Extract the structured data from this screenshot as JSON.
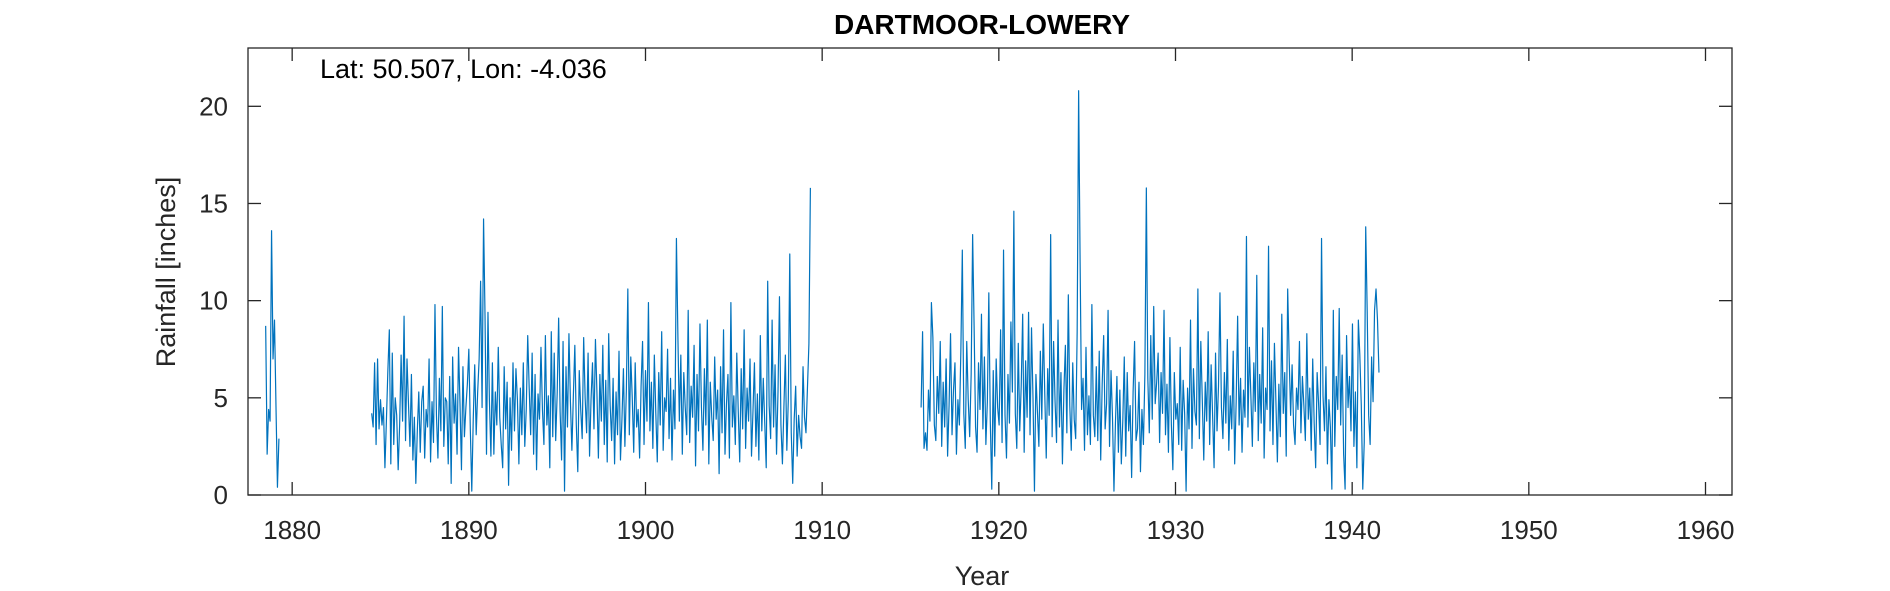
{
  "chart_data": {
    "type": "line",
    "title": "DARTMOOR-LOWERY",
    "xlabel": "Year",
    "ylabel": "Rainfall [inches]",
    "annotation": "Lat: 50.507, Lon: -4.036",
    "xlim": [
      1877.5,
      1961.5
    ],
    "ylim": [
      0,
      23
    ],
    "xticks": [
      1880,
      1890,
      1900,
      1910,
      1920,
      1930,
      1940,
      1950,
      1960
    ],
    "yticks": [
      0,
      5,
      10,
      15,
      20
    ],
    "grid": false,
    "line_color": "#0072BD",
    "series": [
      {
        "segments": [
          {
            "start": 1878.5,
            "values": [
              8.7,
              2.1,
              4.4,
              3.8,
              13.6,
              7.0,
              9.0,
              4.6,
              0.4,
              2.9
            ]
          },
          {
            "start": 1884.5,
            "values": [
              4.2,
              3.5,
              6.8,
              2.6,
              7.0,
              3.4,
              4.9,
              3.6,
              4.5,
              1.4,
              3.8,
              6.4,
              8.5,
              1.6,
              7.3,
              2.6,
              5.0,
              4.1,
              1.3,
              3.6,
              7.2,
              3.8,
              9.2,
              2.8,
              7.0,
              4.7,
              2.5,
              6.2,
              1.8,
              4.0,
              0.6,
              3.3,
              5.3,
              2.2,
              4.8,
              5.6,
              1.9,
              4.4,
              3.5,
              7.0,
              1.7,
              4.8,
              2.7,
              9.8,
              4.1,
              1.9,
              6.0,
              3.3,
              9.7,
              2.5,
              5.0,
              4.8,
              1.6,
              6.1,
              0.6,
              7.1,
              3.7,
              5.2,
              2.1,
              7.6,
              4.7,
              1.3,
              6.6,
              3.0,
              4.5,
              5.7,
              7.5,
              3.4,
              0.2,
              3.9,
              6.7,
              3.1,
              5.3,
              7.0,
              11.0,
              4.5,
              14.2,
              9.2,
              2.1,
              9.4,
              4.8,
              2.0,
              6.8,
              2.1,
              5.3,
              3.6,
              7.6,
              4.0,
              2.6,
              1.4,
              6.6,
              3.4,
              5.8,
              0.5,
              5.0,
              2.3,
              6.8,
              3.3,
              6.5,
              4.9,
              1.6,
              5.5,
              3.1,
              6.8,
              2.5,
              4.4,
              8.2,
              5.5,
              3.1,
              7.3,
              2.1,
              6.2,
              1.3,
              5.2,
              3.9,
              7.6,
              4.4,
              2.6,
              8.2,
              3.6,
              5.1,
              1.4,
              8.4,
              3.0,
              7.3,
              2.8,
              5.2,
              9.1,
              4.3,
              1.8,
              7.9,
              0.2,
              6.6,
              3.5,
              8.3,
              4.8,
              2.3,
              5.1,
              7.7,
              3.6,
              1.2,
              6.4,
              4.4,
              2.9,
              8.1,
              5.0,
              3.2,
              7.3,
              2.0,
              4.9,
              6.8,
              3.4,
              8.0,
              5.3,
              1.9,
              6.2,
              3.8,
              7.7,
              2.6,
              5.9,
              1.7,
              8.3,
              4.6,
              2.8,
              6.0,
              1.6,
              5.3,
              3.1,
              7.4,
              1.8,
              3.9,
              6.5,
              2.5,
              5.4,
              10.6,
              3.1,
              7.1,
              5.0,
              2.2,
              6.8,
              3.5,
              4.4,
              1.9,
              5.6,
              7.9,
              2.6,
              6.4,
              3.8,
              9.9,
              3.3,
              5.8,
              2.4,
              7.2,
              4.2,
              1.7,
              6.3,
              3.6,
              8.4,
              2.3,
              5.0,
              4.3,
              7.5,
              2.9,
              6.0,
              1.8,
              5.4,
              3.4,
              13.2,
              8.2,
              3.8,
              7.2,
              2.1,
              6.3,
              4.5,
              3.1,
              9.5,
              2.7,
              5.6,
              4.0,
              7.7,
              1.5,
              6.2,
              3.3,
              8.8,
              4.5,
              2.3,
              6.5,
              3.6,
              9.0,
              1.6,
              5.8,
              4.0,
              2.8,
              7.1,
              3.9,
              5.4,
              1.1,
              6.6,
              3.2,
              8.5,
              2.1,
              4.7,
              6.2,
              1.9,
              9.9,
              3.5,
              5.1,
              2.6,
              7.3,
              4.3,
              1.7,
              6.5,
              3.4,
              8.5,
              2.4,
              5.5,
              3.8,
              7.0,
              2.0,
              4.3,
              6.8,
              2.5,
              5.2,
              1.8,
              8.2,
              3.3,
              6.0,
              3.7,
              1.4,
              11.0,
              4.6,
              2.9,
              9.0,
              3.5,
              6.7,
              2.1,
              5.3,
              10.2,
              3.6,
              1.6,
              4.5,
              7.2,
              2.3,
              4.9,
              12.4,
              3.2,
              0.6,
              3.9,
              5.6,
              2.0,
              4.1,
              3.0,
              2.4,
              6.6,
              4.0,
              3.2,
              5.5,
              7.8,
              15.8
            ]
          },
          {
            "start": 1915.6,
            "values": [
              4.5,
              8.4,
              2.4,
              3.2,
              2.3,
              5.4,
              3.8,
              9.9,
              8.1,
              3.6,
              2.8,
              6.1,
              4.2,
              7.9,
              2.5,
              5.8,
              3.5,
              7.0,
              2.0,
              4.6,
              8.3,
              3.1,
              5.4,
              6.8,
              2.1,
              4.9,
              3.6,
              7.4,
              12.6,
              4.2,
              2.4,
              7.9,
              4.9,
              3.0,
              6.2,
              13.4,
              8.7,
              3.5,
              2.2,
              6.8,
              4.4,
              9.3,
              3.4,
              7.1,
              2.6,
              4.8,
              10.4,
              3.8,
              0.3,
              6.4,
              2.0,
              7.0,
              4.5,
              3.6,
              8.5,
              2.7,
              12.6,
              4.1,
              1.9,
              6.2,
              3.7,
              8.9,
              5.3,
              14.6,
              4.2,
              2.4,
              7.8,
              3.3,
              5.6,
              9.3,
              2.2,
              6.9,
              4.0,
              9.4,
              3.1,
              8.6,
              5.0,
              0.2,
              6.2,
              4.3,
              2.5,
              7.4,
              3.9,
              8.8,
              5.2,
              1.9,
              6.5,
              4.1,
              13.4,
              3.0,
              7.9,
              4.8,
              2.7,
              9.0,
              3.5,
              6.3,
              1.6,
              5.4,
              7.7,
              3.2,
              10.3,
              4.6,
              2.3,
              6.8,
              3.9,
              2.9,
              8.4,
              20.8,
              12.0,
              4.4,
              6.0,
              2.3,
              7.6,
              3.1,
              5.1,
              2.6,
              9.8,
              4.1,
              3.0,
              6.6,
              2.8,
              7.4,
              1.8,
              5.7,
              8.2,
              3.4,
              4.7,
              9.5,
              2.5,
              6.4,
              4.0,
              0.2,
              3.7,
              6.1,
              2.2,
              5.4,
              1.6,
              3.8,
              7.1,
              2.0,
              6.3,
              3.3,
              4.6,
              0.9,
              5.3,
              7.9,
              2.8,
              3.4,
              5.8,
              1.2,
              4.4,
              2.6,
              6.2,
              15.8,
              6.0,
              3.2,
              8.2,
              3.9,
              9.7,
              4.7,
              5.8,
              7.3,
              2.7,
              6.3,
              4.2,
              9.5,
              3.1,
              5.7,
              2.2,
              8.1,
              3.6,
              1.3,
              6.3,
              3.9,
              4.7,
              2.6,
              7.6,
              2.3,
              5.9,
              4.2,
              0.2,
              5.5,
              3.4,
              9.0,
              2.4,
              6.5,
              4.3,
              3.6,
              10.6,
              2.9,
              7.9,
              4.9,
              1.8,
              5.8,
              3.8,
              8.4,
              2.6,
              6.7,
              4.1,
              1.4,
              7.3,
              3.3,
              5.6,
              10.4,
              4.5,
              2.9,
              6.3,
              3.7,
              8.0,
              2.3,
              5.1,
              3.4,
              7.4,
              1.6,
              4.8,
              9.2,
              3.6,
              6.0,
              2.2,
              5.4,
              4.0,
              13.3,
              3.5,
              7.6,
              5.1,
              2.5,
              6.8,
              4.3,
              11.3,
              2.8,
              6.2,
              3.7,
              8.6,
              1.9,
              5.5,
              4.4,
              12.8,
              3.3,
              6.9,
              2.6,
              7.8,
              4.8,
              1.7,
              5.7,
              3.0,
              9.3,
              4.2,
              6.3,
              2.0,
              10.6,
              7.1,
              4.1,
              6.7,
              3.6,
              2.6,
              5.5,
              4.4,
              7.9,
              3.2,
              6.1,
              4.6,
              2.8,
              8.3,
              3.9,
              5.5,
              2.3,
              7.0,
              3.7,
              1.4,
              6.3,
              4.7,
              2.6,
              13.2,
              5.1,
              3.3,
              6.6,
              1.6,
              4.9,
              3.5,
              0.3,
              9.5,
              2.5,
              6.1,
              4.4,
              9.6,
              3.6,
              7.2,
              2.1,
              0.3,
              8.2,
              4.5,
              6.1,
              3.3,
              8.8,
              2.5,
              5.3,
              1.4,
              9.0,
              7.2,
              4.6,
              0.3,
              2.7,
              13.8,
              9.5,
              4.1,
              2.6,
              7.1,
              4.8,
              9.5,
              10.6,
              9.0,
              6.3
            ]
          }
        ]
      }
    ]
  }
}
